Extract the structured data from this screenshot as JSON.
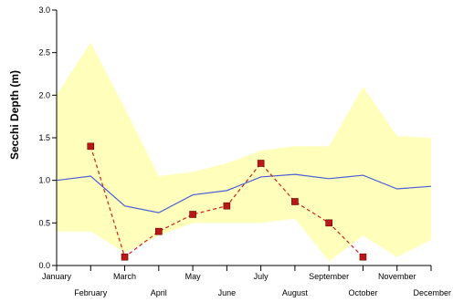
{
  "chart_data": {
    "type": "line",
    "title": "",
    "xlabel": "",
    "ylabel": "Secchi Depth (m)",
    "categories": [
      "January",
      "February",
      "March",
      "April",
      "May",
      "June",
      "July",
      "August",
      "September",
      "October",
      "November",
      "December"
    ],
    "ylim": [
      0,
      3.0
    ],
    "yticks": [
      "0.0",
      "0.5",
      "1.0",
      "1.5",
      "2.0",
      "2.5",
      "3.0"
    ],
    "grid": false,
    "legend": "none",
    "series": [
      {
        "kind": "band",
        "upper": [
          2.0,
          2.62,
          1.85,
          1.05,
          1.1,
          1.2,
          1.35,
          1.4,
          1.4,
          2.1,
          1.52,
          1.5
        ],
        "lower": [
          0.4,
          0.4,
          0.15,
          0.35,
          0.5,
          0.5,
          0.5,
          0.55,
          0.05,
          0.35,
          0.1,
          0.3
        ],
        "color": "#ffffbb"
      },
      {
        "kind": "line",
        "values": [
          1.0,
          1.05,
          0.7,
          0.62,
          0.83,
          0.88,
          1.04,
          1.07,
          1.02,
          1.06,
          0.9,
          0.93
        ],
        "color": "#4a5fd6"
      },
      {
        "kind": "points",
        "x": [
          "February",
          "March",
          "April",
          "May",
          "June",
          "July",
          "August",
          "September",
          "October"
        ],
        "values": [
          1.4,
          0.1,
          0.4,
          0.6,
          0.7,
          1.2,
          0.75,
          0.5,
          0.1
        ],
        "color": "#cc2222",
        "marker_color": "#b81818"
      }
    ]
  }
}
